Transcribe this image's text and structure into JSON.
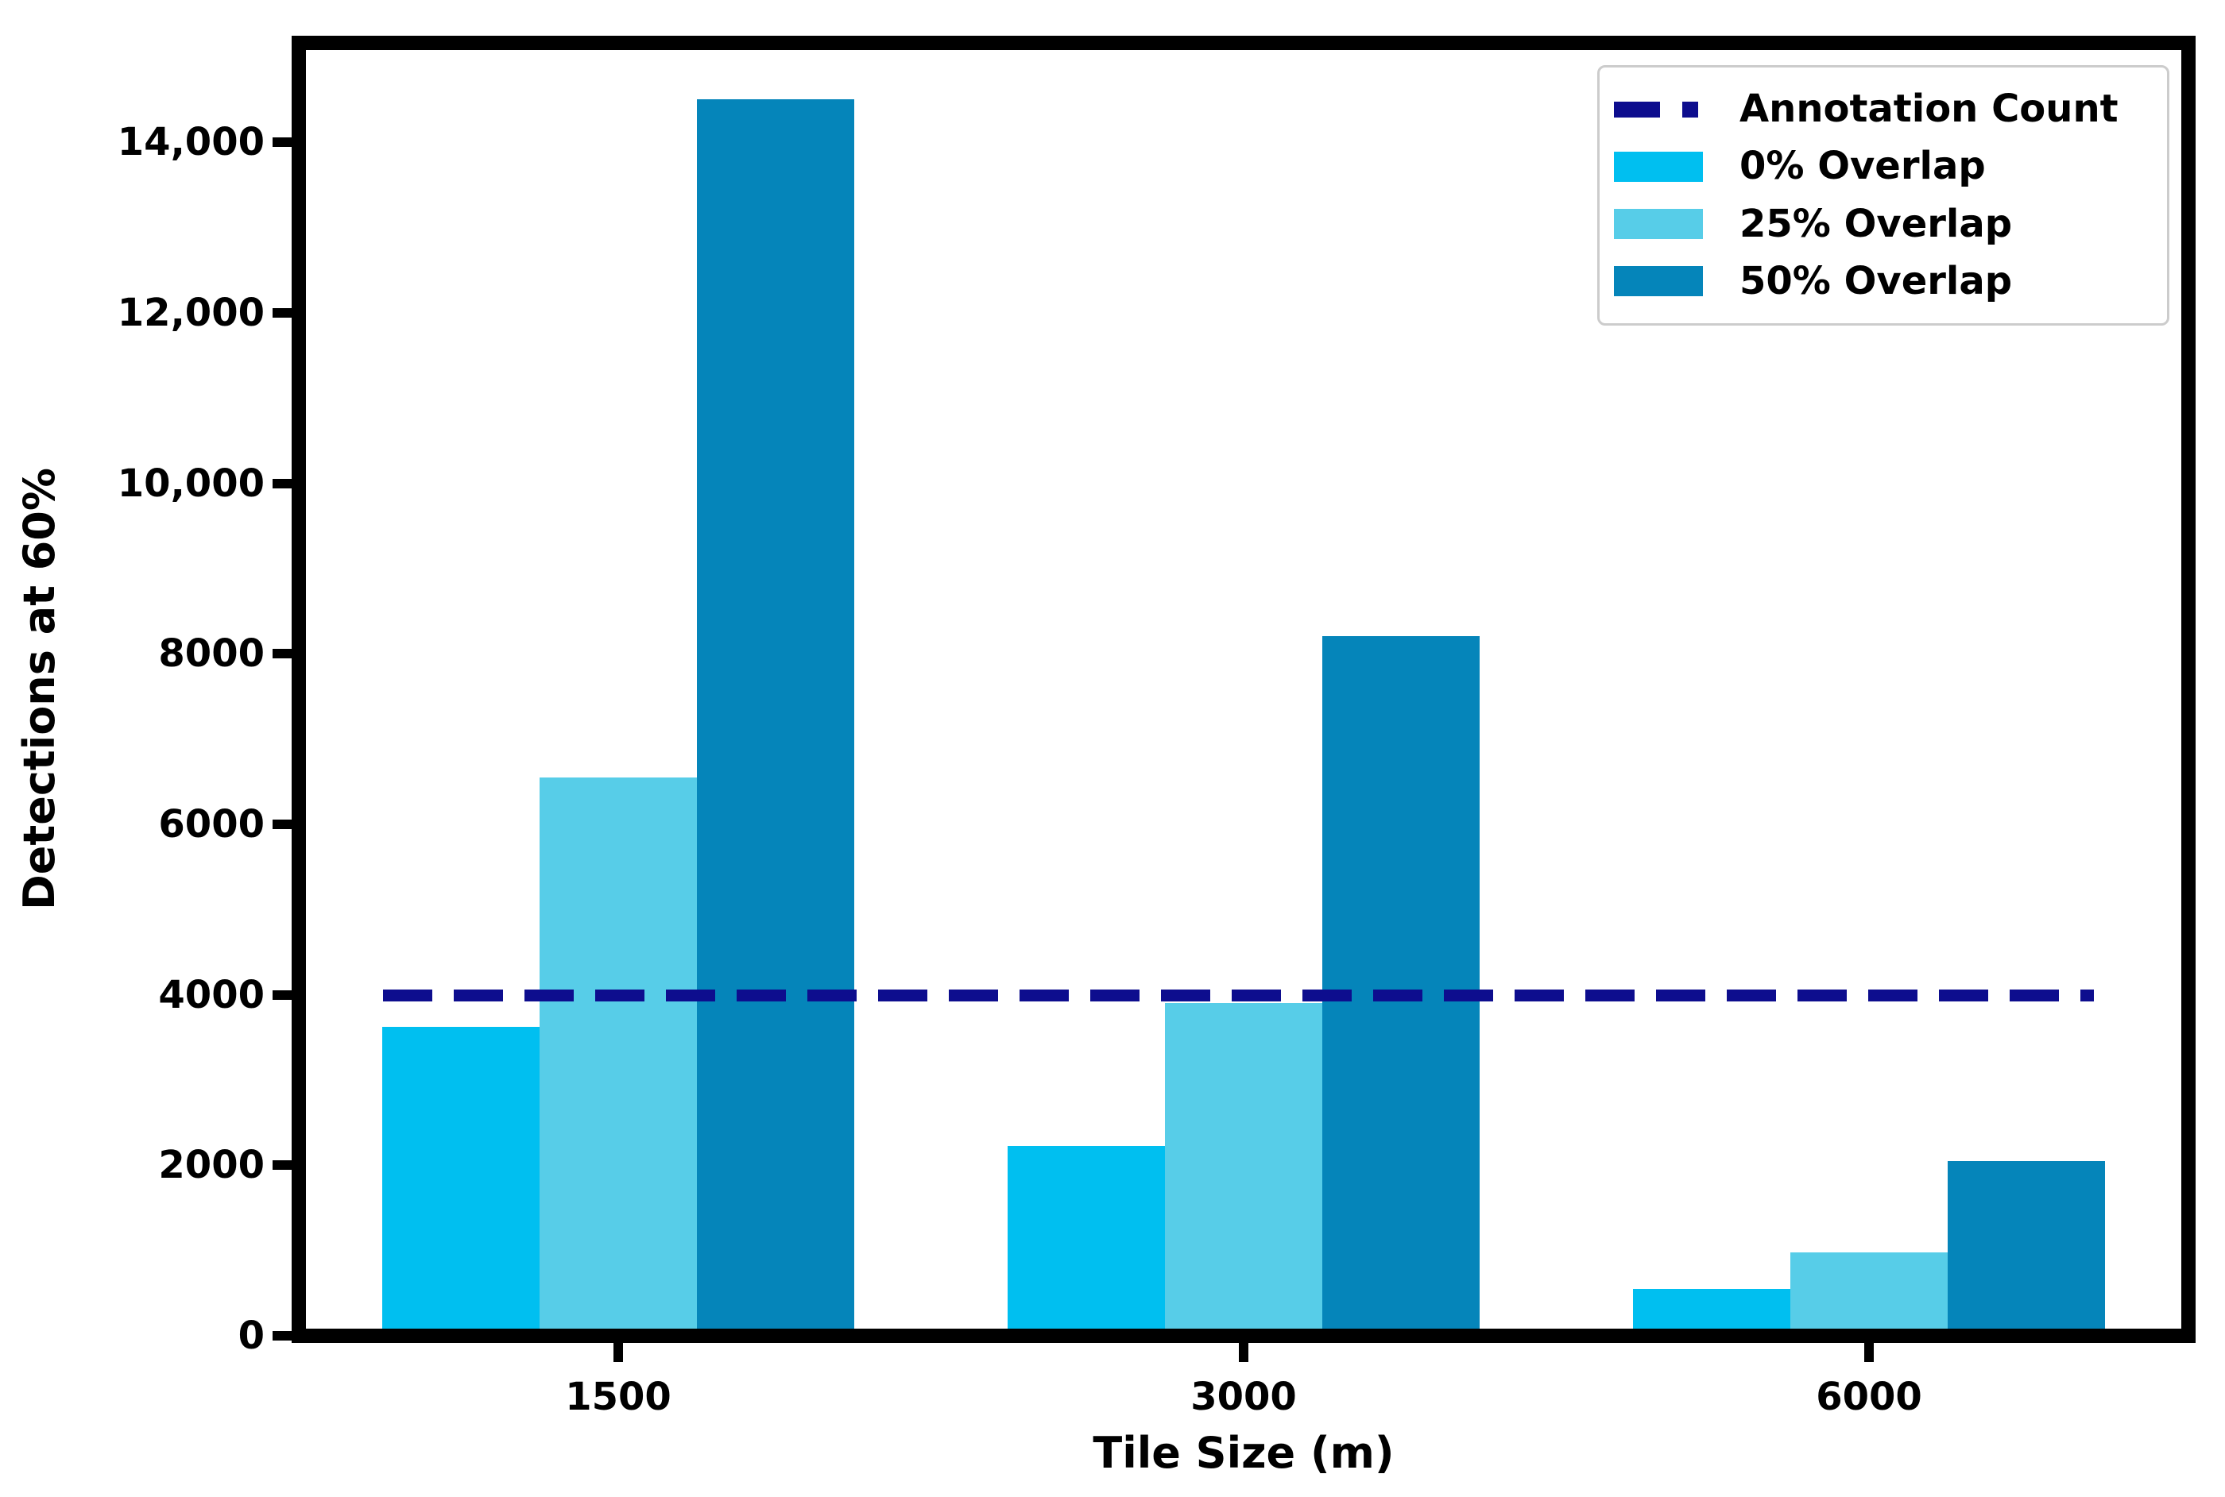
{
  "chart_data": {
    "type": "bar",
    "title": "",
    "xlabel": "Tile Size (m)",
    "ylabel": "Detections at 60%",
    "categories": [
      "1500",
      "3000",
      "6000"
    ],
    "series": [
      {
        "name": "0% Overlap",
        "color": "#00bff0",
        "values": [
          3540,
          2140,
          470
        ]
      },
      {
        "name": "25% Overlap",
        "color": "#57cde8",
        "values": [
          6470,
          3820,
          890
        ]
      },
      {
        "name": "50% Overlap",
        "color": "#0585ba",
        "values": [
          14420,
          8120,
          1970
        ]
      }
    ],
    "reference_line": {
      "label": "Annotation Count",
      "value": 3910,
      "color": "#0d0d8e",
      "style": "dashed"
    },
    "y_axis": {
      "max": 15000,
      "ticks": [
        {
          "value": 0,
          "label": "0"
        },
        {
          "value": 2000,
          "label": "2000"
        },
        {
          "value": 4000,
          "label": "4000"
        },
        {
          "value": 6000,
          "label": "6000"
        },
        {
          "value": 8000,
          "label": "8000"
        },
        {
          "value": 10000,
          "label": "10,000"
        },
        {
          "value": 12000,
          "label": "12,000"
        },
        {
          "value": 14000,
          "label": "14,000"
        }
      ]
    },
    "grid": false,
    "legend": {
      "position": "upper right",
      "entries": [
        {
          "type": "line",
          "label": "Annotation Count",
          "color": "#0d0d8e"
        },
        {
          "type": "patch",
          "label": "0% Overlap",
          "color": "#00bff0"
        },
        {
          "type": "patch",
          "label": "25% Overlap",
          "color": "#57cde8"
        },
        {
          "type": "patch",
          "label": "50% Overlap",
          "color": "#0585ba"
        }
      ]
    }
  }
}
